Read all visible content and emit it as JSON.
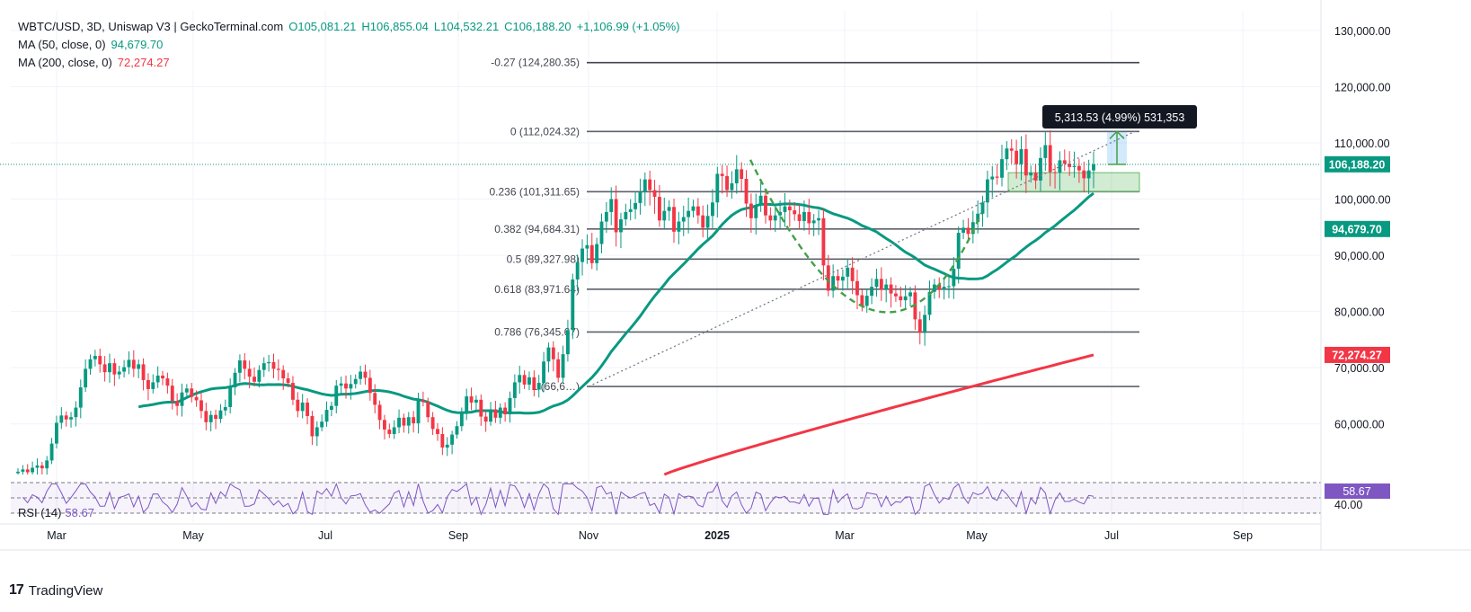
{
  "header": {
    "symbol_line": "WBTC/USD, 3D, Uniswap V3 | GeckoTerminal.com",
    "open": "O105,081.21",
    "high": "H106,855.04",
    "low": "L104,532.21",
    "close": "C106,188.20",
    "change": "+1,106.99 (+1.05%)",
    "ma50_label": "MA (50, close, 0)",
    "ma50_value": "94,679.70",
    "ma200_label": "MA (200, close, 0)",
    "ma200_value": "72,274.27"
  },
  "rsi": {
    "label": "RSI (14)",
    "value": "58.67",
    "badge": "58.67",
    "level_label": "40.00"
  },
  "brand": {
    "name": "TradingView",
    "logo": "17"
  },
  "colors": {
    "up": "#089981",
    "down": "#f23645",
    "ma50": "#089981",
    "ma200": "#f23645",
    "rsi": "#7e57c2",
    "fib": "#787b86",
    "cup": "#43a047"
  },
  "chart_data": {
    "type": "candlestick",
    "title": "",
    "x_ticks": [
      "Mar",
      "May",
      "Jul",
      "Sep",
      "Nov",
      "2025",
      "Mar",
      "May",
      "Jul",
      "Sep"
    ],
    "y_ticks": [
      "130,000.00",
      "120,000.00",
      "110,000.00",
      "100,000.00",
      "90,000.00",
      "80,000.00",
      "70,000.00",
      "60,000.00"
    ],
    "ylim": [
      51000,
      133500
    ],
    "price_badges": [
      {
        "label": "106,188.20",
        "value": 106188.2,
        "color": "#089981"
      },
      {
        "label": "94,679.70",
        "value": 94679.7,
        "color": "#089981"
      },
      {
        "label": "72,274.27",
        "value": 72274.27,
        "color": "#f23645"
      }
    ],
    "fib_levels": [
      {
        "label": "-0.27 (124,280.35)",
        "value": 124280.35
      },
      {
        "label": "0 (112,024.32)",
        "value": 112024.32
      },
      {
        "label": "0.236 (101,311.65)",
        "value": 101311.65
      },
      {
        "label": "0.382 (94,684.31)",
        "value": 94684.31
      },
      {
        "label": "0.5 (89,327.98)",
        "value": 89327.98
      },
      {
        "label": "0.618 (83,971.64)",
        "value": 83971.64
      },
      {
        "label": "0.786 (76,345.67)",
        "value": 76345.67
      },
      {
        "label": "1 (66,6…)",
        "value": 66658
      }
    ],
    "measure_label": "5,313.53 (4.99%) 531,353",
    "closes": [
      51500,
      51900,
      51400,
      52200,
      52600,
      52100,
      53500,
      56500,
      60200,
      61500,
      60800,
      61200,
      62900,
      66500,
      69800,
      71500,
      72100,
      70600,
      69200,
      70800,
      68800,
      69300,
      70100,
      71400,
      69800,
      70600,
      67800,
      66200,
      67400,
      68600,
      68100,
      66800,
      64100,
      63200,
      65600,
      66300,
      64800,
      64200,
      62300,
      60300,
      61600,
      60900,
      62400,
      63000,
      66500,
      69100,
      71300,
      69800,
      68400,
      67500,
      69600,
      70800,
      71000,
      69800,
      69600,
      68100,
      67300,
      64300,
      62300,
      63800,
      61400,
      57800,
      59400,
      60400,
      62500,
      63200,
      66800,
      67200,
      66300,
      67100,
      68000,
      69300,
      68200,
      65500,
      63400,
      60700,
      59000,
      58200,
      59400,
      61100,
      59700,
      61200,
      60100,
      64200,
      63900,
      61200,
      59100,
      58200,
      55800,
      56300,
      58100,
      59600,
      61800,
      64900,
      63800,
      64300,
      61300,
      60400,
      62600,
      61100,
      62900,
      61700,
      64600,
      67400,
      68700,
      67000,
      68300,
      66100,
      67300,
      71100,
      73600,
      71500,
      68200,
      72400,
      76700,
      85700,
      88800,
      91200,
      91800,
      88600,
      92000,
      96000,
      97700,
      100000,
      94100,
      96400,
      97700,
      98200,
      99300,
      101200,
      103500,
      101600,
      100400,
      96200,
      97900,
      98600,
      94200,
      96000,
      96800,
      97900,
      98700,
      97100,
      94900,
      97000,
      99400,
      104500,
      104100,
      101600,
      102800,
      105300,
      103600,
      99200,
      96600,
      98900,
      100600,
      97100,
      96200,
      97100,
      97700,
      98700,
      98000,
      97300,
      96100,
      97700,
      95700,
      96200,
      96600,
      88200,
      83700,
      86300,
      85500,
      86200,
      87800,
      85400,
      82900,
      81000,
      82800,
      84400,
      85800,
      83900,
      84800,
      83200,
      82700,
      82000,
      82700,
      83400,
      78600,
      76200,
      79400,
      83500,
      84800,
      83900,
      84400,
      84500,
      87600,
      94000,
      94900,
      93800,
      95900,
      97400,
      99400,
      103500,
      104000,
      103800,
      107100,
      109000,
      108600,
      106200,
      108900,
      104200,
      104700,
      103300,
      107300,
      109600,
      104800,
      104700,
      106900,
      106300,
      105700,
      105900,
      105100,
      103700,
      105100,
      106200
    ]
  }
}
